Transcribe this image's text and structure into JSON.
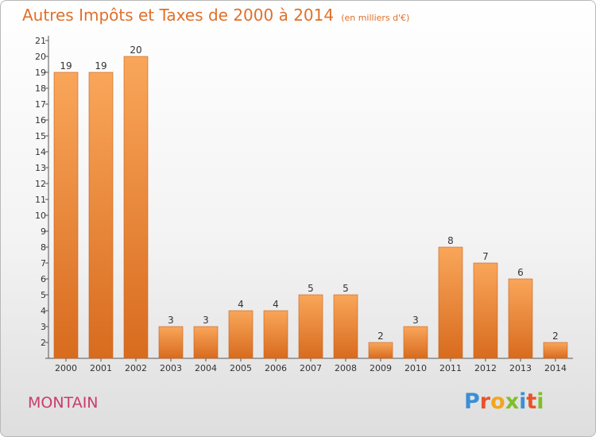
{
  "header": {
    "title": "Autres Impôts et Taxes de 2000 à 2014",
    "subtitle": "(en milliers d'€)"
  },
  "footer": {
    "place": "MONTAIN",
    "logo": "Proxiti"
  },
  "colors": {
    "title": "#e0702a",
    "bar_light": "#f9a65a",
    "bar_dark": "#d86b1e",
    "place": "#c83c6e",
    "logo_letters": [
      "#3a8fd6",
      "#e8542a",
      "#f2a51e",
      "#7fbf2a",
      "#3a8fd6",
      "#e8542a",
      "#7fbf2a"
    ]
  },
  "chart_data": {
    "type": "bar",
    "categories": [
      "2000",
      "2001",
      "2002",
      "2003",
      "2004",
      "2005",
      "2006",
      "2007",
      "2008",
      "2009",
      "2010",
      "2011",
      "2012",
      "2013",
      "2014"
    ],
    "values": [
      19,
      19,
      20,
      3,
      3,
      4,
      4,
      5,
      5,
      2,
      3,
      8,
      7,
      6,
      2
    ],
    "value_labels": [
      "19",
      "19",
      "20",
      "3",
      "3",
      "4",
      "4",
      "5",
      "5",
      "2",
      "3",
      "8",
      "7",
      "6",
      "2"
    ],
    "yticks": [
      "",
      "2",
      "3",
      "4",
      "5",
      "6",
      "7",
      "8",
      "9",
      "10",
      "11",
      "12",
      "13",
      "14",
      "15",
      "16",
      "17",
      "18",
      "19",
      "20",
      "21"
    ],
    "ylim": [
      1,
      21
    ],
    "xlabel": "",
    "ylabel": "",
    "grid": false,
    "legend": "none"
  }
}
